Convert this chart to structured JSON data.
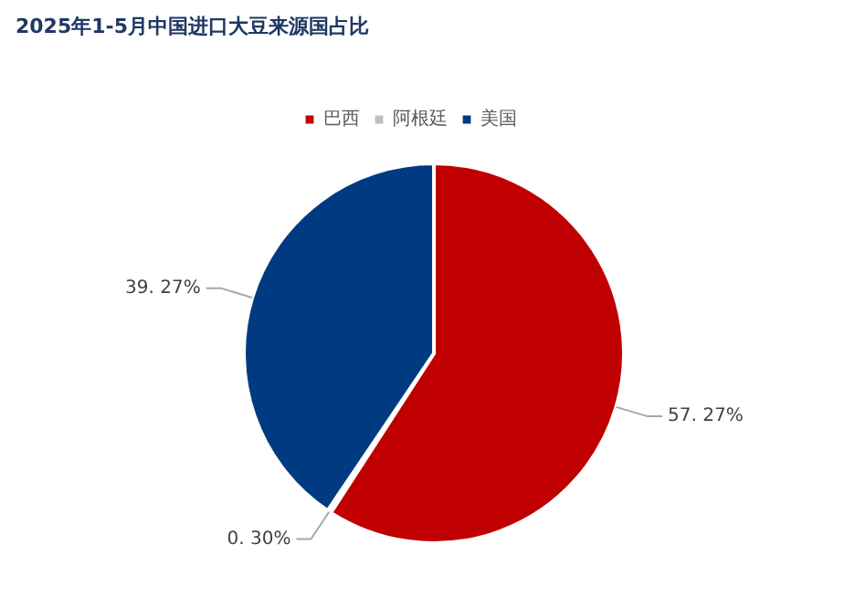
{
  "chart_data": {
    "type": "pie",
    "title": "2025年1-5月中国进口大豆来源国占比",
    "categories": [
      "巴西",
      "阿根廷",
      "美国"
    ],
    "values": [
      57.27,
      0.3,
      39.27
    ],
    "colors": [
      "#c00000",
      "#bfbfbf",
      "#003a80"
    ],
    "value_labels": [
      "57. 27%",
      "0. 30%",
      "39. 27%"
    ],
    "legend": "top"
  }
}
